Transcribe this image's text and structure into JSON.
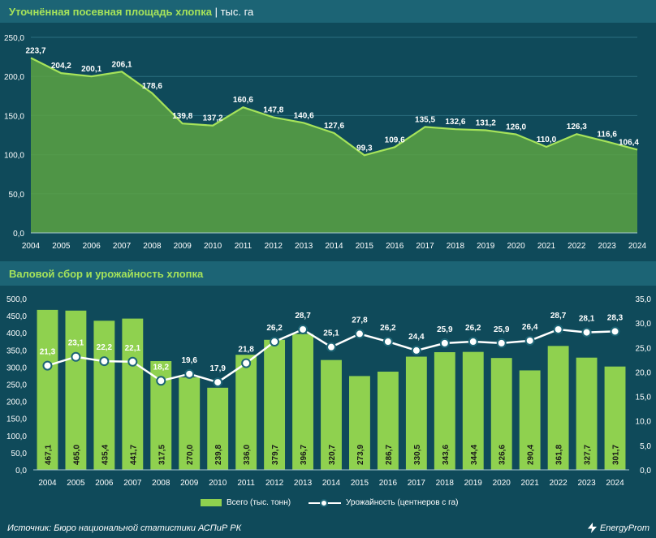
{
  "title1": "Уточнённая посевная площадь хлопка",
  "title1_unit": "тыс. га",
  "title2": "Валовой сбор и урожайность хлопка",
  "legend": {
    "bar": "Всего (тыс. тонн)",
    "line": "Урожайность (центнеров с га)"
  },
  "footer": {
    "source": "Источник: Бюро национальной статистики АСПиР РК",
    "brand": "EnergyProm"
  },
  "colors": {
    "bg": "#0f4a5a",
    "band": "#1c6475",
    "title": "#a6e35a",
    "area_fill": "#5aa243",
    "area_line": "#a6e35a",
    "bar": "#8fd14f",
    "line": "#ffffff"
  },
  "chart_data": [
    {
      "type": "area",
      "title": "Уточнённая посевная площадь хлопка",
      "unit": "тыс. га",
      "x": [
        "2004",
        "2005",
        "2006",
        "2007",
        "2008",
        "2009",
        "2010",
        "2011",
        "2012",
        "2013",
        "2014",
        "2015",
        "2016",
        "2017",
        "2018",
        "2019",
        "2020",
        "2021",
        "2022",
        "2023",
        "2024"
      ],
      "values": [
        223.7,
        204.2,
        200.1,
        206.1,
        178.6,
        139.8,
        137.2,
        160.6,
        147.8,
        140.6,
        127.6,
        99.3,
        109.6,
        135.5,
        132.6,
        131.2,
        126.0,
        110.0,
        126.3,
        116.6,
        106.4
      ],
      "labels": [
        "223,7",
        "204,2",
        "200,1",
        "206,1",
        "178,6",
        "139,8",
        "137,2",
        "160,6",
        "147,8",
        "140,6",
        "127,6",
        "99,3",
        "109,6",
        "135,5",
        "132,6",
        "131,2",
        "126,0",
        "110,0",
        "126,3",
        "116,6",
        "106,4"
      ],
      "ylim": [
        0,
        250
      ],
      "yticks": [
        "0,0",
        "50,0",
        "100,0",
        "150,0",
        "200,0",
        "250,0"
      ],
      "grid": true
    },
    {
      "type": "bar+line",
      "title": "Валовой сбор и урожайность хлопка",
      "x": [
        "2004",
        "2005",
        "2006",
        "2007",
        "2008",
        "2009",
        "2010",
        "2011",
        "2012",
        "2013",
        "2014",
        "2015",
        "2016",
        "2017",
        "2018",
        "2019",
        "2020",
        "2021",
        "2022",
        "2023",
        "2024"
      ],
      "series": [
        {
          "name": "Всего (тыс. тонн)",
          "type": "bar",
          "axis": "left",
          "values": [
            467.1,
            465.0,
            435.4,
            441.7,
            317.5,
            270.0,
            239.8,
            336.0,
            379.7,
            396.7,
            320.7,
            273.9,
            286.7,
            330.5,
            343.6,
            344.4,
            326.6,
            290.4,
            361.8,
            327.7,
            301.7
          ],
          "labels": [
            "467,1",
            "465,0",
            "435,4",
            "441,7",
            "317,5",
            "270,0",
            "239,8",
            "336,0",
            "379,7",
            "396,7",
            "320,7",
            "273,9",
            "286,7",
            "330,5",
            "343,6",
            "344,4",
            "326,6",
            "290,4",
            "361,8",
            "327,7",
            "301,7"
          ]
        },
        {
          "name": "Урожайность (центнеров с га)",
          "type": "line",
          "axis": "right",
          "values": [
            21.3,
            23.1,
            22.2,
            22.1,
            18.2,
            19.6,
            17.9,
            21.8,
            26.2,
            28.7,
            25.1,
            27.8,
            26.2,
            24.4,
            25.9,
            26.2,
            25.9,
            26.4,
            28.7,
            28.1,
            28.3
          ],
          "labels": [
            "21,3",
            "23,1",
            "22,2",
            "22,1",
            "18,2",
            "19,6",
            "17,9",
            "21,8",
            "26,2",
            "28,7",
            "25,1",
            "27,8",
            "26,2",
            "24,4",
            "25,9",
            "26,2",
            "25,9",
            "26,4",
            "28,7",
            "28,1",
            "28,3"
          ]
        }
      ],
      "ylim_left": [
        0,
        500
      ],
      "yticks_left": [
        "0,0",
        "50,0",
        "100,0",
        "150,0",
        "200,0",
        "250,0",
        "300,0",
        "350,0",
        "400,0",
        "450,0",
        "500,0"
      ],
      "ylim_right": [
        0,
        35
      ],
      "yticks_right": [
        "0,0",
        "5,0",
        "10,0",
        "15,0",
        "20,0",
        "25,0",
        "30,0",
        "35,0"
      ],
      "legend_position": "bottom"
    }
  ]
}
